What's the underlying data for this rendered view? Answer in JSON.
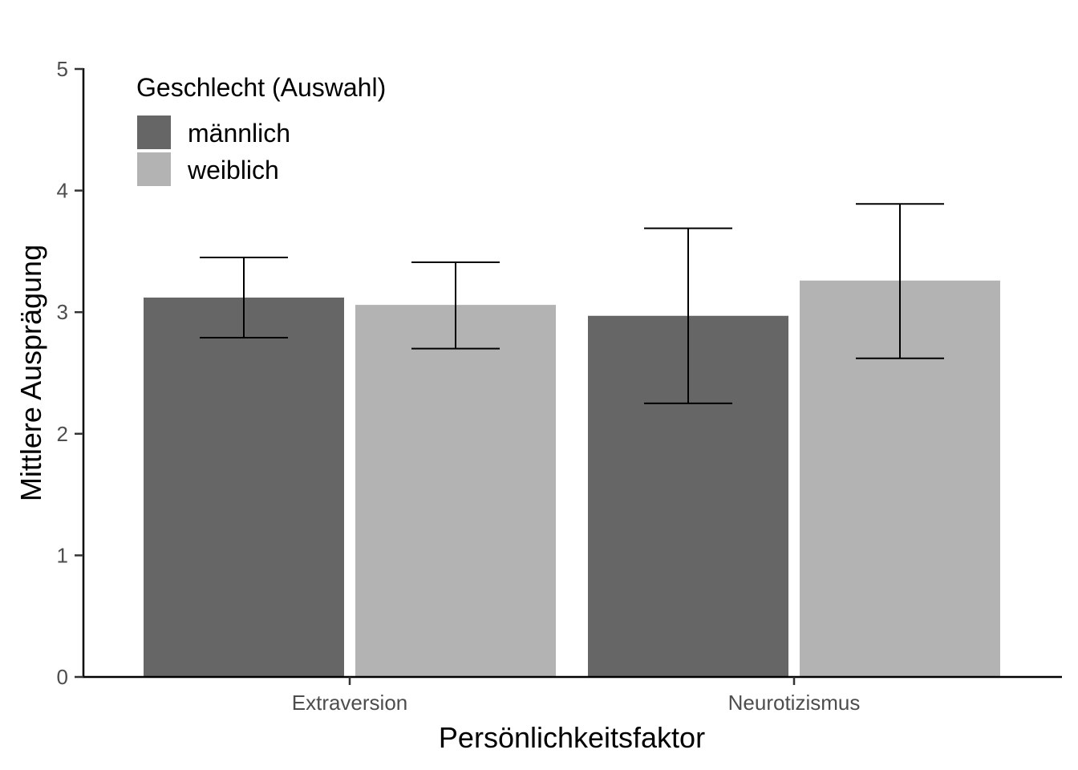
{
  "chart_data": {
    "type": "bar",
    "title": "",
    "xlabel": "Persönlichkeitsfaktor",
    "ylabel": "Mittlere Ausprägung",
    "ylim": [
      0,
      5
    ],
    "yticks": [
      "0",
      "1",
      "2",
      "3",
      "4",
      "5"
    ],
    "categories": [
      "Extraversion",
      "Neurotizismus"
    ],
    "series": [
      {
        "name": "männlich",
        "color": "#666666",
        "values": [
          3.12,
          2.97
        ],
        "error_low": [
          2.79,
          2.25
        ],
        "error_high": [
          3.45,
          3.69
        ]
      },
      {
        "name": "weiblich",
        "color": "#b3b3b3",
        "values": [
          3.06,
          3.26
        ],
        "error_low": [
          2.7,
          2.62
        ],
        "error_high": [
          3.41,
          3.89
        ]
      }
    ],
    "legend": {
      "title": "Geschlecht (Auswahl)",
      "position": "top-left"
    },
    "grid": false
  }
}
